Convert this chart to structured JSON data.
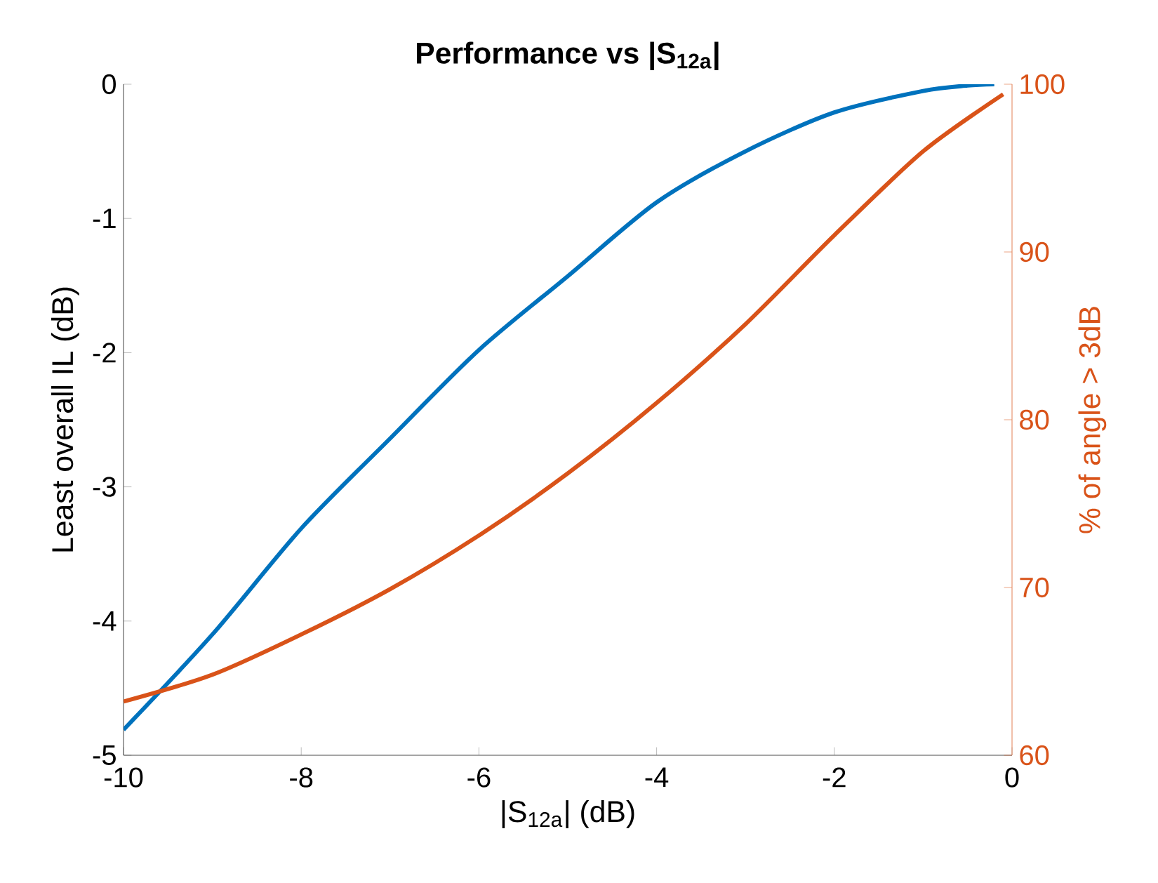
{
  "chart_data": {
    "type": "line",
    "title": "**Performance vs |S$_{12a}$|**",
    "xlabel": "|S$_{12a}$| (dB)",
    "ylabel": "Least overall IL (dB)",
    "y2label": "% of angle > 3dB",
    "x": [
      -10,
      -9,
      -8,
      -7,
      -6,
      -5,
      -4,
      -3,
      -2,
      -1,
      -0.5,
      -0.2
    ],
    "series": [
      {
        "color": "#0072bd",
        "values": [
          -4.81,
          -4.1,
          -3.31,
          -2.64,
          -1.98,
          -1.43,
          -0.88,
          -0.5,
          -0.21,
          -0.05,
          -0.01,
          0
        ]
      },
      {
        "color": "#d95319",
        "axis": "y2",
        "x": [
          -10,
          -9,
          -8,
          -7,
          -6,
          -5,
          -4,
          -3,
          -2,
          -1,
          -0.1
        ],
        "values": [
          63.2,
          64.8,
          67.2,
          69.9,
          73.1,
          76.8,
          81.0,
          85.7,
          91.0,
          96.0,
          99.4
        ]
      }
    ],
    "xlim": [
      -10,
      0
    ],
    "xticks": [
      -10,
      -8,
      -6,
      -4,
      -2,
      0
    ],
    "ylim": [
      -5,
      0
    ],
    "yticks": [
      -5,
      -4,
      -3,
      -2,
      -1,
      0
    ],
    "y2lim": [
      60,
      100
    ],
    "y2ticks": [
      60,
      70,
      80,
      90,
      100
    ],
    "grid": false,
    "marker": "none",
    "line_style": "solid"
  }
}
